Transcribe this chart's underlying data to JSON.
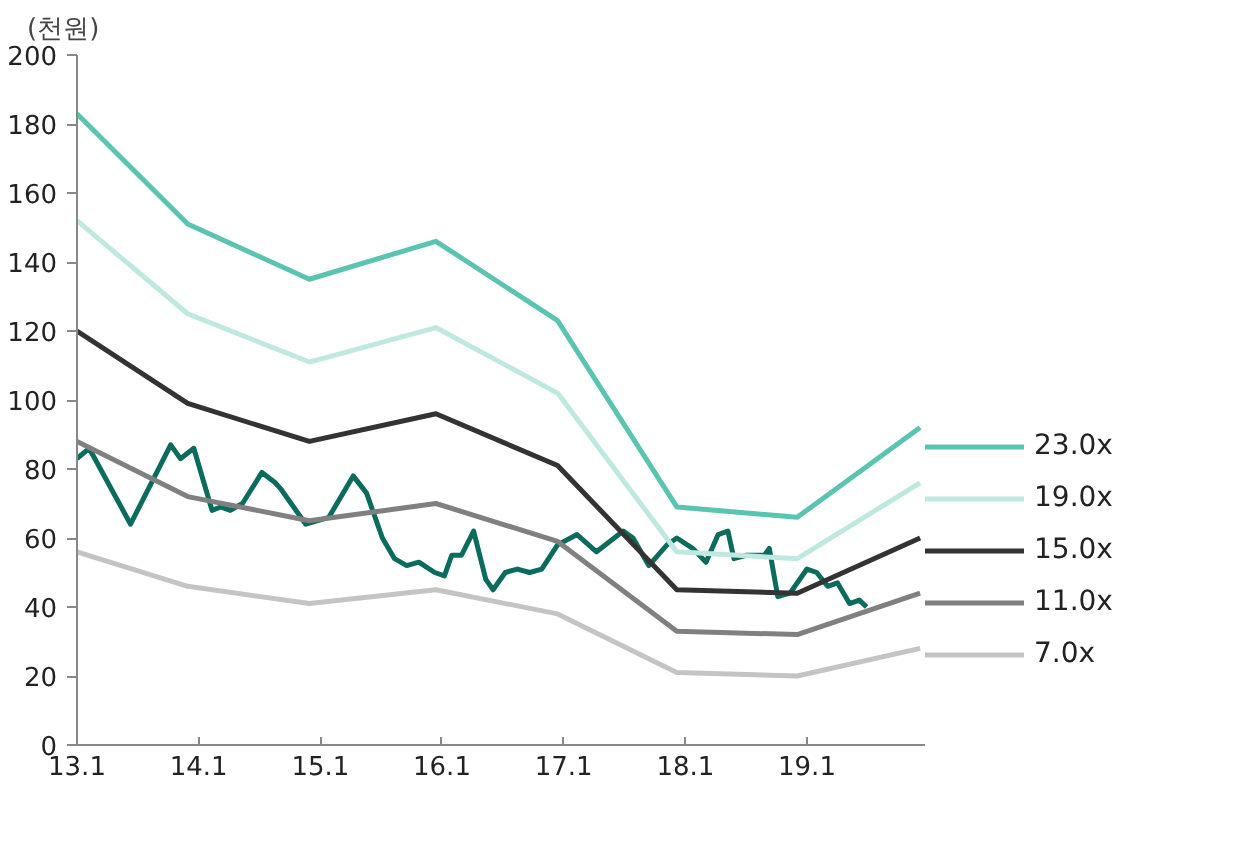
{
  "chart_data": {
    "type": "line",
    "ylabel": "(천원)",
    "xlim": [
      13.1,
      20.07
    ],
    "ylim": [
      0,
      200
    ],
    "xticks": [
      13.1,
      14.1,
      15.1,
      16.1,
      17.1,
      18.1,
      19.1
    ],
    "yticks": [
      0,
      20,
      40,
      60,
      80,
      100,
      120,
      140,
      160,
      180,
      200
    ],
    "grid": false,
    "legend": "right",
    "marker": "none",
    "line_style": "solid",
    "series": [
      {
        "color": "#0b6b5c",
        "x": [
          13.1,
          13.2,
          13.54,
          13.87,
          13.95,
          14.06,
          14.21,
          14.28,
          14.36,
          14.46,
          14.62,
          14.73,
          14.78,
          14.98,
          15.17,
          15.37,
          15.48,
          15.61,
          15.71,
          15.81,
          15.91,
          16.04,
          16.12,
          16.18,
          16.26,
          16.36,
          16.46,
          16.52,
          16.62,
          16.72,
          16.82,
          16.92,
          17.05,
          17.21,
          17.37,
          17.59,
          17.67,
          17.8,
          17.95,
          18.03,
          18.16,
          18.27,
          18.37,
          18.45,
          18.5,
          18.6,
          18.75,
          18.79,
          18.86,
          18.96,
          19.1,
          19.18,
          19.27,
          19.35,
          19.45,
          19.53,
          19.59
        ],
        "values": [
          83,
          86,
          64,
          87,
          83,
          86,
          68,
          69,
          68,
          70,
          79,
          76,
          74,
          64,
          66,
          78,
          73,
          60,
          54,
          52,
          53,
          50,
          49,
          55,
          55,
          62,
          48,
          45,
          50,
          51,
          50,
          51,
          58,
          61,
          56,
          62,
          60,
          52,
          58,
          60,
          57,
          53,
          61,
          62,
          54,
          55,
          55,
          57,
          43,
          44,
          51,
          50,
          46,
          47,
          41,
          42,
          40
        ]
      },
      {
        "name": "23.0x",
        "color": "#5bc4b1",
        "x": [
          13.1,
          14.01,
          15.01,
          16.05,
          17.05,
          18.03,
          19.02,
          20.03
        ],
        "values": [
          183,
          151,
          135,
          146,
          123,
          69,
          66,
          92
        ]
      },
      {
        "name": "19.0x",
        "color": "#bfe8e0",
        "x": [
          13.1,
          14.01,
          15.01,
          16.05,
          17.05,
          18.03,
          19.02,
          20.03
        ],
        "values": [
          152,
          125,
          111,
          121,
          102,
          56,
          54,
          76
        ]
      },
      {
        "name": "15.0x",
        "color": "#333333",
        "x": [
          13.1,
          14.01,
          15.01,
          16.05,
          17.05,
          18.03,
          19.02,
          20.03
        ],
        "values": [
          120,
          99,
          88,
          96,
          81,
          45,
          44,
          60
        ]
      },
      {
        "name": "11.0x",
        "color": "#808080",
        "x": [
          13.1,
          14.01,
          15.01,
          16.05,
          17.05,
          18.03,
          19.02,
          20.03
        ],
        "values": [
          88,
          72,
          65,
          70,
          59,
          33,
          32,
          44
        ]
      },
      {
        "name": "7.0x",
        "color": "#c4c4c4",
        "x": [
          13.1,
          14.01,
          15.01,
          16.05,
          17.05,
          18.03,
          19.02,
          20.03
        ],
        "values": [
          56,
          46,
          41,
          45,
          38,
          21,
          20,
          28
        ]
      }
    ]
  }
}
